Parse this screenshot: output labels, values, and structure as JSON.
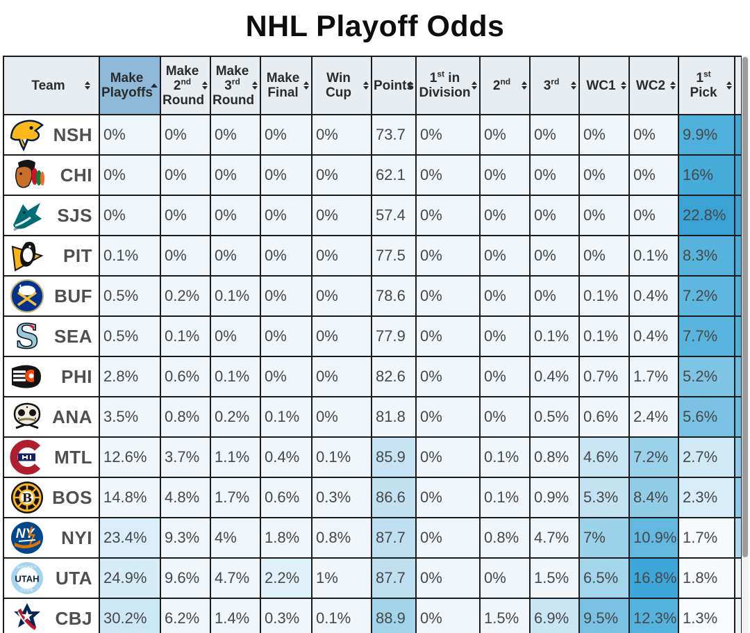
{
  "title": "NHL Playoff Odds",
  "colors": {
    "active_header_bg": "#8fb9d8",
    "header_bg": "#e7edf0",
    "default_cell_bg": "#f0f6fa",
    "grid_border": "#1b1b1b",
    "scrollbar_thumb": "#9d9d9d"
  },
  "table": {
    "columns": [
      {
        "id": "team",
        "lines": [
          "Team"
        ],
        "sort": "both"
      },
      {
        "id": "make-playoffs",
        "lines": [
          "Make",
          "Playoffs"
        ],
        "sort": "asc",
        "active": true
      },
      {
        "id": "make-2nd-round",
        "lines": [
          "Make",
          "2nd",
          "Round"
        ],
        "sort": "both"
      },
      {
        "id": "make-3rd-round",
        "lines": [
          "Make",
          "3rd",
          "Round"
        ],
        "sort": "both"
      },
      {
        "id": "make-final",
        "lines": [
          "Make",
          "Final"
        ],
        "sort": "both"
      },
      {
        "id": "win-cup",
        "lines": [
          "Win",
          "Cup"
        ],
        "sort": "both"
      },
      {
        "id": "points",
        "lines": [
          "Points"
        ],
        "sort": "both"
      },
      {
        "id": "1st-in-division",
        "lines": [
          "1st in",
          "Division"
        ],
        "sort": "both"
      },
      {
        "id": "2nd",
        "lines": [
          "2nd"
        ],
        "sort": "both"
      },
      {
        "id": "3rd",
        "lines": [
          "3rd"
        ],
        "sort": "both"
      },
      {
        "id": "wc1",
        "lines": [
          "WC1"
        ],
        "sort": "both"
      },
      {
        "id": "wc2",
        "lines": [
          "WC2"
        ],
        "sort": "both"
      },
      {
        "id": "1st-pick",
        "lines": [
          "1st",
          "Pick"
        ],
        "sort": "both"
      }
    ],
    "rows": [
      {
        "team": "NSH",
        "logo": "nsh-logo",
        "edge": "#3fa8d8",
        "cells": [
          {
            "v": "0%"
          },
          {
            "v": "0%"
          },
          {
            "v": "0%"
          },
          {
            "v": "0%"
          },
          {
            "v": "0%"
          },
          {
            "v": "73.7"
          },
          {
            "v": "0%"
          },
          {
            "v": "0%"
          },
          {
            "v": "0%"
          },
          {
            "v": "0%"
          },
          {
            "v": "0%"
          },
          {
            "v": "9.9%",
            "bg": "#4fb0db"
          }
        ]
      },
      {
        "team": "CHI",
        "logo": "chi-logo",
        "edge": "#3fa8d8",
        "cells": [
          {
            "v": "0%"
          },
          {
            "v": "0%"
          },
          {
            "v": "0%"
          },
          {
            "v": "0%"
          },
          {
            "v": "0%"
          },
          {
            "v": "62.1"
          },
          {
            "v": "0%"
          },
          {
            "v": "0%"
          },
          {
            "v": "0%"
          },
          {
            "v": "0%"
          },
          {
            "v": "0%"
          },
          {
            "v": "16%",
            "bg": "#45abd8"
          }
        ]
      },
      {
        "team": "SJS",
        "logo": "sjs-logo",
        "edge": "#3aa2d4",
        "cells": [
          {
            "v": "0%"
          },
          {
            "v": "0%"
          },
          {
            "v": "0%"
          },
          {
            "v": "0%"
          },
          {
            "v": "0%"
          },
          {
            "v": "57.4"
          },
          {
            "v": "0%"
          },
          {
            "v": "0%"
          },
          {
            "v": "0%"
          },
          {
            "v": "0%"
          },
          {
            "v": "0%"
          },
          {
            "v": "22.8%",
            "bg": "#3aa2d4"
          }
        ]
      },
      {
        "team": "PIT",
        "logo": "pit-logo",
        "edge": "#47acd9",
        "cells": [
          {
            "v": "0.1%"
          },
          {
            "v": "0%"
          },
          {
            "v": "0%"
          },
          {
            "v": "0%"
          },
          {
            "v": "0%"
          },
          {
            "v": "77.5"
          },
          {
            "v": "0%"
          },
          {
            "v": "0%"
          },
          {
            "v": "0%"
          },
          {
            "v": "0%"
          },
          {
            "v": "0.1%"
          },
          {
            "v": "8.3%",
            "bg": "#55b3dc"
          }
        ]
      },
      {
        "team": "BUF",
        "logo": "buf-logo",
        "edge": "#4db0da",
        "cells": [
          {
            "v": "0.5%"
          },
          {
            "v": "0.2%"
          },
          {
            "v": "0.1%"
          },
          {
            "v": "0%"
          },
          {
            "v": "0%"
          },
          {
            "v": "78.6"
          },
          {
            "v": "0%"
          },
          {
            "v": "0%"
          },
          {
            "v": "0%"
          },
          {
            "v": "0.1%"
          },
          {
            "v": "0.4%"
          },
          {
            "v": "7.2%",
            "bg": "#5db7de"
          }
        ]
      },
      {
        "team": "SEA",
        "logo": "sea-logo",
        "edge": "#4db0da",
        "cells": [
          {
            "v": "0.5%"
          },
          {
            "v": "0.1%"
          },
          {
            "v": "0%"
          },
          {
            "v": "0%"
          },
          {
            "v": "0%"
          },
          {
            "v": "77.9"
          },
          {
            "v": "0%"
          },
          {
            "v": "0%"
          },
          {
            "v": "0.1%"
          },
          {
            "v": "0.1%"
          },
          {
            "v": "0.4%"
          },
          {
            "v": "7.7%",
            "bg": "#59b5dd"
          }
        ]
      },
      {
        "team": "PHI",
        "logo": "phi-logo",
        "edge": "#6dbce0",
        "cells": [
          {
            "v": "2.8%"
          },
          {
            "v": "0.6%"
          },
          {
            "v": "0.1%"
          },
          {
            "v": "0%"
          },
          {
            "v": "0%"
          },
          {
            "v": "82.6"
          },
          {
            "v": "0%"
          },
          {
            "v": "0%"
          },
          {
            "v": "0.4%"
          },
          {
            "v": "0.7%"
          },
          {
            "v": "1.7%"
          },
          {
            "v": "5.2%",
            "bg": "#7ec4e5"
          }
        ]
      },
      {
        "team": "ANA",
        "logo": "ana-logo",
        "edge": "#69bae0",
        "cells": [
          {
            "v": "3.5%"
          },
          {
            "v": "0.8%"
          },
          {
            "v": "0.2%"
          },
          {
            "v": "0.1%"
          },
          {
            "v": "0%"
          },
          {
            "v": "81.8"
          },
          {
            "v": "0%"
          },
          {
            "v": "0%"
          },
          {
            "v": "0.5%"
          },
          {
            "v": "0.6%"
          },
          {
            "v": "2.4%"
          },
          {
            "v": "5.6%",
            "bg": "#79c2e4"
          }
        ]
      },
      {
        "team": "MTL",
        "logo": "mtl-logo",
        "edge": "#8ecae7",
        "cells": [
          {
            "v": "12.6%"
          },
          {
            "v": "3.7%"
          },
          {
            "v": "1.1%"
          },
          {
            "v": "0.4%"
          },
          {
            "v": "0.1%"
          },
          {
            "v": "85.9",
            "bg": "#c6e4f3"
          },
          {
            "v": "0%"
          },
          {
            "v": "0.1%"
          },
          {
            "v": "0.8%"
          },
          {
            "v": "4.6%",
            "bg": "#c9e6f4"
          },
          {
            "v": "7.2%",
            "bg": "#9bd1ea"
          },
          {
            "v": "2.7%",
            "bg": "#cfe9f5"
          }
        ]
      },
      {
        "team": "BOS",
        "logo": "bos-logo",
        "edge": "#8acae7",
        "cells": [
          {
            "v": "14.8%"
          },
          {
            "v": "4.8%"
          },
          {
            "v": "1.7%"
          },
          {
            "v": "0.6%"
          },
          {
            "v": "0.3%"
          },
          {
            "v": "86.6",
            "bg": "#c2e2f2"
          },
          {
            "v": "0%"
          },
          {
            "v": "0.1%"
          },
          {
            "v": "0.9%"
          },
          {
            "v": "5.3%",
            "bg": "#c3e3f2"
          },
          {
            "v": "8.4%",
            "bg": "#92cde8"
          },
          {
            "v": "2.3%",
            "bg": "#d7edf7"
          }
        ]
      },
      {
        "team": "NYI",
        "logo": "nyi-logo",
        "edge": "#aed9ee",
        "cells": [
          {
            "v": "23.4%",
            "bg": "#d9eef8"
          },
          {
            "v": "9.3%"
          },
          {
            "v": "4%"
          },
          {
            "v": "1.8%"
          },
          {
            "v": "0.8%"
          },
          {
            "v": "87.7",
            "bg": "#bfe0f1"
          },
          {
            "v": "0%"
          },
          {
            "v": "0.8%"
          },
          {
            "v": "4.7%"
          },
          {
            "v": "7%",
            "bg": "#9cd2ea"
          },
          {
            "v": "10.9%",
            "bg": "#63b8df"
          },
          {
            "v": "1.7%",
            "bg": "#f6fafd"
          }
        ]
      },
      {
        "team": "UTA",
        "logo": "uta-logo",
        "edge": "#eef6fa",
        "cells": [
          {
            "v": "24.9%",
            "bg": "#d6ecf7"
          },
          {
            "v": "9.6%"
          },
          {
            "v": "4.7%"
          },
          {
            "v": "2.2%",
            "bg": "#e2f1f9"
          },
          {
            "v": "1%"
          },
          {
            "v": "87.7",
            "bg": "#bfe0f1"
          },
          {
            "v": "0%"
          },
          {
            "v": "0%"
          },
          {
            "v": "1.5%"
          },
          {
            "v": "6.5%",
            "bg": "#a3d5ec"
          },
          {
            "v": "16.8%",
            "bg": "#3ea7da"
          },
          {
            "v": "1.8%",
            "bg": "#f6fafd"
          }
        ]
      },
      {
        "team": "CBJ",
        "logo": "cbj-logo",
        "edge": "#eef6fa",
        "cells": [
          {
            "v": "30.2%",
            "bg": "#cde8f5"
          },
          {
            "v": "6.2%"
          },
          {
            "v": "1.4%"
          },
          {
            "v": "0.3%"
          },
          {
            "v": "0.1%"
          },
          {
            "v": "88.9",
            "bg": "#a2d4eb"
          },
          {
            "v": "0%"
          },
          {
            "v": "1.5%"
          },
          {
            "v": "6.9%",
            "bg": "#c9e6f4"
          },
          {
            "v": "9.5%",
            "bg": "#7ac2e3"
          },
          {
            "v": "12.3%",
            "bg": "#55b2dc"
          },
          {
            "v": "1.3%",
            "bg": "#f8fbfd"
          }
        ]
      }
    ]
  }
}
